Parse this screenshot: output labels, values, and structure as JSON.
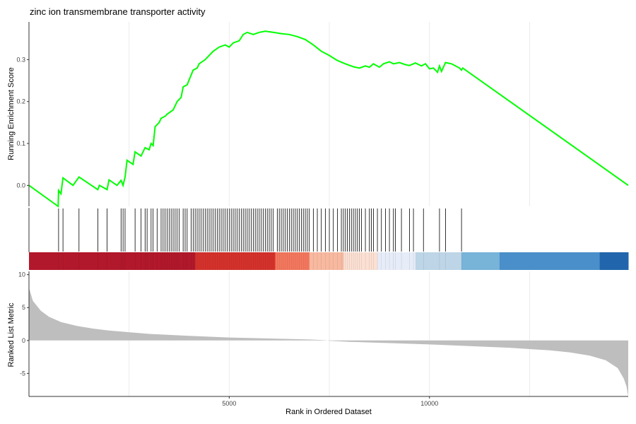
{
  "chart_data": {
    "type": "line",
    "title": "zinc ion transmembrane transporter activity",
    "x_range": [
      1,
      14962
    ],
    "running_score": {
      "ylabel": "Running Enrichment Score",
      "ylim": [
        -0.05,
        0.39
      ],
      "ticks": [
        0.0,
        0.1,
        0.2,
        0.3
      ],
      "tick_labels": [
        "0.0",
        "0.1",
        "0.2",
        "0.3"
      ],
      "line_color": "#00FF00",
      "points": [
        [
          1,
          0.0
        ],
        [
          730,
          -0.05
        ],
        [
          740,
          -0.012
        ],
        [
          800,
          -0.02
        ],
        [
          850,
          0.018
        ],
        [
          1100,
          0.0
        ],
        [
          1250,
          0.02
        ],
        [
          1720,
          -0.01
        ],
        [
          1760,
          0.0
        ],
        [
          1950,
          -0.01
        ],
        [
          2000,
          0.013
        ],
        [
          2200,
          0.0
        ],
        [
          2300,
          0.012
        ],
        [
          2350,
          0.0
        ],
        [
          2400,
          0.02
        ],
        [
          2450,
          0.06
        ],
        [
          2600,
          0.05
        ],
        [
          2650,
          0.08
        ],
        [
          2800,
          0.07
        ],
        [
          2900,
          0.09
        ],
        [
          3000,
          0.085
        ],
        [
          3050,
          0.1
        ],
        [
          3100,
          0.095
        ],
        [
          3150,
          0.14
        ],
        [
          3250,
          0.15
        ],
        [
          3300,
          0.16
        ],
        [
          3400,
          0.165
        ],
        [
          3450,
          0.17
        ],
        [
          3600,
          0.18
        ],
        [
          3700,
          0.2
        ],
        [
          3800,
          0.21
        ],
        [
          3850,
          0.235
        ],
        [
          3950,
          0.24
        ],
        [
          4100,
          0.275
        ],
        [
          4200,
          0.28
        ],
        [
          4250,
          0.29
        ],
        [
          4400,
          0.3
        ],
        [
          4600,
          0.32
        ],
        [
          4750,
          0.33
        ],
        [
          4900,
          0.335
        ],
        [
          5000,
          0.33
        ],
        [
          5100,
          0.34
        ],
        [
          5250,
          0.345
        ],
        [
          5350,
          0.36
        ],
        [
          5450,
          0.365
        ],
        [
          5600,
          0.36
        ],
        [
          5750,
          0.365
        ],
        [
          5900,
          0.368
        ],
        [
          6100,
          0.365
        ],
        [
          6300,
          0.362
        ],
        [
          6500,
          0.36
        ],
        [
          6700,
          0.355
        ],
        [
          6900,
          0.348
        ],
        [
          7100,
          0.335
        ],
        [
          7300,
          0.32
        ],
        [
          7500,
          0.31
        ],
        [
          7700,
          0.298
        ],
        [
          7900,
          0.29
        ],
        [
          8100,
          0.283
        ],
        [
          8250,
          0.28
        ],
        [
          8400,
          0.285
        ],
        [
          8500,
          0.282
        ],
        [
          8600,
          0.29
        ],
        [
          8750,
          0.282
        ],
        [
          8850,
          0.29
        ],
        [
          9000,
          0.295
        ],
        [
          9100,
          0.29
        ],
        [
          9250,
          0.293
        ],
        [
          9400,
          0.288
        ],
        [
          9500,
          0.286
        ],
        [
          9650,
          0.292
        ],
        [
          9800,
          0.285
        ],
        [
          9900,
          0.29
        ],
        [
          10000,
          0.278
        ],
        [
          10100,
          0.28
        ],
        [
          10200,
          0.27
        ],
        [
          10250,
          0.285
        ],
        [
          10300,
          0.272
        ],
        [
          10400,
          0.293
        ],
        [
          10550,
          0.29
        ],
        [
          10650,
          0.285
        ],
        [
          10750,
          0.28
        ],
        [
          10800,
          0.275
        ],
        [
          10830,
          0.28
        ],
        [
          14962,
          0.0
        ]
      ]
    },
    "gene_hits": [
      740,
      850,
      1250,
      1720,
      1950,
      2300,
      2350,
      2400,
      2650,
      2800,
      2900,
      2950,
      3050,
      3100,
      3200,
      3300,
      3350,
      3400,
      3450,
      3500,
      3550,
      3600,
      3650,
      3700,
      3750,
      3850,
      3900,
      3950,
      4050,
      4100,
      4150,
      4200,
      4250,
      4300,
      4350,
      4400,
      4450,
      4500,
      4550,
      4600,
      4650,
      4700,
      4750,
      4800,
      4850,
      4900,
      4950,
      5000,
      5050,
      5100,
      5150,
      5200,
      5250,
      5300,
      5350,
      5400,
      5450,
      5500,
      5550,
      5600,
      5650,
      5700,
      5750,
      5800,
      5850,
      5900,
      5950,
      6000,
      6050,
      6100,
      6200,
      6250,
      6300,
      6350,
      6400,
      6450,
      6500,
      6550,
      6600,
      6650,
      6700,
      6750,
      6800,
      6850,
      6900,
      6950,
      7000,
      7100,
      7200,
      7300,
      7400,
      7500,
      7600,
      7700,
      7800,
      7850,
      7900,
      7950,
      8000,
      8050,
      8100,
      8150,
      8200,
      8250,
      8300,
      8400,
      8500,
      8550,
      8600,
      8700,
      8800,
      8900,
      9000,
      9100,
      9150,
      9300,
      9500,
      9600,
      9850,
      10250,
      10400,
      10800
    ],
    "rank_bands": [
      {
        "from": 1,
        "to": 4150,
        "color": "#B2182B"
      },
      {
        "from": 4150,
        "to": 6150,
        "color": "#D6322C"
      },
      {
        "from": 6150,
        "to": 7000,
        "color": "#F4785E"
      },
      {
        "from": 7000,
        "to": 7850,
        "color": "#F8B9A0"
      },
      {
        "from": 7850,
        "to": 8700,
        "color": "#FBE0D3"
      },
      {
        "from": 8700,
        "to": 9650,
        "color": "#E6ECF8"
      },
      {
        "from": 9650,
        "to": 10800,
        "color": "#BDD5E6"
      },
      {
        "from": 10800,
        "to": 11750,
        "color": "#78B3D8"
      },
      {
        "from": 11750,
        "to": 14250,
        "color": "#4A8FC9"
      },
      {
        "from": 14250,
        "to": 14962,
        "color": "#2166AC"
      }
    ],
    "ranked_metric": {
      "ylabel": "Ranked List Metric",
      "ylim": [
        -8.5,
        10.5
      ],
      "ticks": [
        10,
        5,
        0,
        -5
      ],
      "tick_labels": [
        "10",
        "5",
        "0",
        "-5"
      ],
      "fill_color": "#BEBEBE",
      "points": [
        [
          1,
          8.0
        ],
        [
          100,
          6.0
        ],
        [
          300,
          4.5
        ],
        [
          500,
          3.6
        ],
        [
          800,
          2.8
        ],
        [
          1200,
          2.2
        ],
        [
          1600,
          1.8
        ],
        [
          2000,
          1.5
        ],
        [
          3000,
          1.0
        ],
        [
          4000,
          0.7
        ],
        [
          5000,
          0.45
        ],
        [
          6000,
          0.3
        ],
        [
          7000,
          0.15
        ],
        [
          7400,
          0.05
        ],
        [
          7500,
          -0.05
        ],
        [
          8000,
          -0.2
        ],
        [
          9000,
          -0.4
        ],
        [
          10000,
          -0.6
        ],
        [
          11000,
          -0.85
        ],
        [
          12000,
          -1.1
        ],
        [
          13000,
          -1.5
        ],
        [
          13500,
          -1.8
        ],
        [
          14000,
          -2.3
        ],
        [
          14400,
          -3.0
        ],
        [
          14700,
          -4.2
        ],
        [
          14850,
          -5.8
        ],
        [
          14920,
          -7.0
        ],
        [
          14962,
          -8.5
        ]
      ]
    },
    "xaxis": {
      "label": "Rank in Ordered Dataset",
      "ticks": [
        5000,
        10000
      ],
      "tick_labels": [
        "5000",
        "10000"
      ],
      "gridlines": [
        2500,
        5000,
        7500,
        10000,
        12500
      ]
    }
  }
}
